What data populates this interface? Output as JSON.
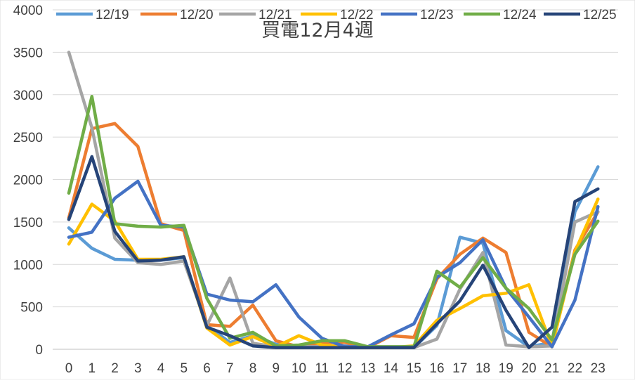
{
  "chart_data": {
    "type": "line",
    "title": "買電12月4週",
    "xlabel": "",
    "ylabel": "",
    "x": [
      0,
      1,
      2,
      3,
      4,
      5,
      6,
      7,
      8,
      9,
      10,
      11,
      12,
      13,
      14,
      15,
      16,
      17,
      18,
      19,
      20,
      21,
      22,
      23
    ],
    "ylim": [
      0,
      4000
    ],
    "yticks": [
      0,
      500,
      1000,
      1500,
      2000,
      2500,
      3000,
      3500,
      4000
    ],
    "grid": true,
    "legend_position": "top",
    "series": [
      {
        "name": "12/19",
        "color": "#5b9bd5",
        "values": [
          1430,
          1190,
          1060,
          1050,
          1050,
          1080,
          280,
          80,
          160,
          60,
          30,
          30,
          40,
          20,
          20,
          20,
          280,
          1320,
          1250,
          220,
          30,
          80,
          1620,
          2150
        ]
      },
      {
        "name": "12/20",
        "color": "#ed7d31",
        "values": [
          1550,
          2600,
          2660,
          2390,
          1480,
          1400,
          290,
          270,
          520,
          100,
          30,
          80,
          80,
          20,
          160,
          140,
          830,
          1120,
          1310,
          1140,
          200,
          30,
          1170,
          1620
        ]
      },
      {
        "name": "12/21",
        "color": "#a5a5a5",
        "values": [
          3500,
          2610,
          1310,
          1020,
          1000,
          1040,
          280,
          840,
          70,
          30,
          30,
          30,
          20,
          20,
          20,
          20,
          120,
          710,
          1140,
          50,
          30,
          40,
          1500,
          1620
        ]
      },
      {
        "name": "12/22",
        "color": "#ffc000",
        "values": [
          1240,
          1710,
          1510,
          1060,
          1060,
          1090,
          250,
          50,
          150,
          30,
          160,
          50,
          30,
          20,
          20,
          40,
          340,
          480,
          630,
          660,
          760,
          30,
          1150,
          1770
        ]
      },
      {
        "name": "12/23",
        "color": "#4472c4",
        "values": [
          1320,
          1380,
          1780,
          1980,
          1460,
          1440,
          650,
          580,
          560,
          760,
          380,
          130,
          30,
          30,
          170,
          300,
          850,
          1020,
          1290,
          720,
          380,
          30,
          580,
          1680
        ]
      },
      {
        "name": "12/24",
        "color": "#70ad47",
        "values": [
          1840,
          2980,
          1480,
          1450,
          1440,
          1460,
          600,
          130,
          200,
          40,
          50,
          100,
          100,
          30,
          30,
          30,
          920,
          730,
          1080,
          720,
          480,
          110,
          1120,
          1510
        ]
      },
      {
        "name": "12/25",
        "color": "#264478",
        "values": [
          1530,
          2270,
          1390,
          1040,
          1050,
          1090,
          260,
          160,
          40,
          20,
          20,
          20,
          20,
          20,
          20,
          20,
          300,
          570,
          990,
          460,
          20,
          260,
          1740,
          1890
        ]
      }
    ]
  }
}
